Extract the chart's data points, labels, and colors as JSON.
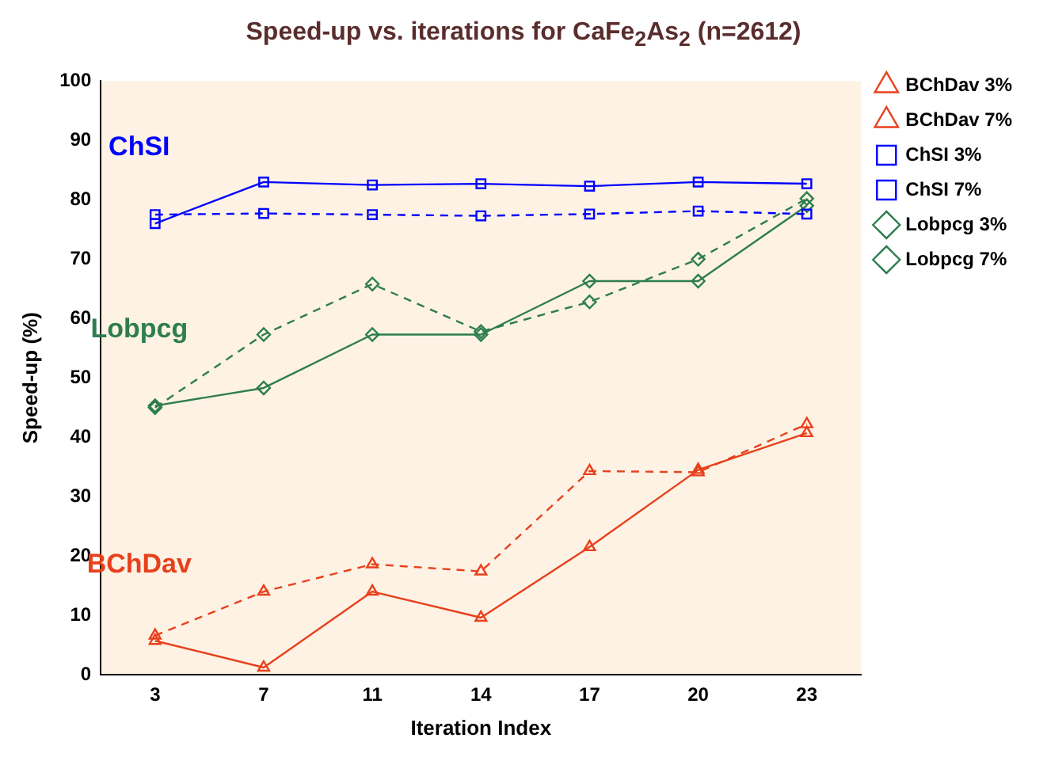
{
  "chart_data": {
    "type": "line",
    "title": "Speed-up vs. iterations for CaFe$_{2}$As$_{2}$ (n=2612)",
    "xlabel": "Iteration Index",
    "ylabel": "Speed-up (%)",
    "categories": [
      "3",
      "7",
      "11",
      "14",
      "17",
      "20",
      "23"
    ],
    "ylim": [
      0,
      100
    ],
    "yticks": [
      0,
      10,
      20,
      30,
      40,
      50,
      60,
      70,
      80,
      90,
      100
    ],
    "grid": false,
    "legend": "right",
    "series": [
      {
        "name": "BChDav 3%",
        "color": "#e8401c",
        "marker": "triangle",
        "line_style": "solid",
        "values": [
          5.7,
          1.2,
          14,
          9.6,
          21.5,
          34.5,
          40.7
        ]
      },
      {
        "name": "BChDav 7%",
        "color": "#e8401c",
        "marker": "triangle",
        "line_style": "dashed",
        "values": [
          6.6,
          14,
          18.6,
          17.4,
          34.3,
          34.1,
          42.2
        ]
      },
      {
        "name": "ChSI 3%",
        "color": "#0000ff",
        "marker": "square",
        "line_style": "solid",
        "values": [
          76,
          83,
          82.5,
          82.7,
          82.3,
          83,
          82.7
        ]
      },
      {
        "name": "ChSI 7%",
        "color": "#0000ff",
        "marker": "square",
        "line_style": "dashed",
        "values": [
          77.5,
          77.7,
          77.5,
          77.3,
          77.6,
          78.1,
          77.6
        ]
      },
      {
        "name": "Lobpcg 3%",
        "color": "#2e7d4f",
        "marker": "diamond",
        "line_style": "solid",
        "values": [
          45.3,
          48.3,
          57.3,
          57.3,
          66.3,
          66.3,
          79
        ]
      },
      {
        "name": "Lobpcg 7%",
        "color": "#2e7d4f",
        "marker": "diamond",
        "line_style": "dashed",
        "values": [
          45,
          57.3,
          65.8,
          57.8,
          62.8,
          70,
          80.2
        ]
      }
    ],
    "annotations": [
      "BChDav",
      "ChSI",
      "Lobpcg"
    ]
  }
}
